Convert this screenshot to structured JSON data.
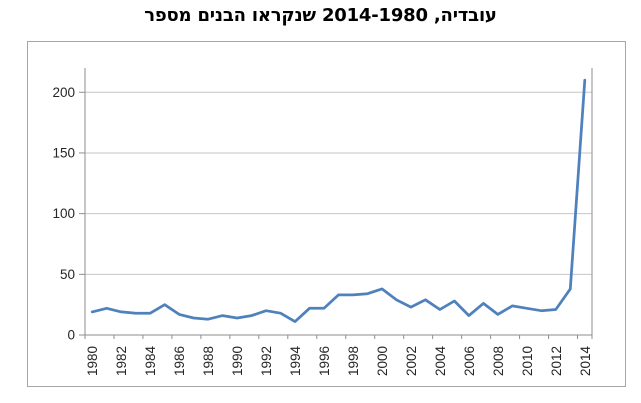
{
  "title": "מספר‎ הבנים‎ שנקראו‎ עובדיה, 2014-1980",
  "chart_data": {
    "type": "line",
    "title": "מספר הבנים שנקראו עובדיה, 2014-1980",
    "x": [
      1980,
      1981,
      1982,
      1983,
      1984,
      1985,
      1986,
      1987,
      1988,
      1989,
      1990,
      1991,
      1992,
      1993,
      1994,
      1995,
      1996,
      1997,
      1998,
      1999,
      2000,
      2001,
      2002,
      2003,
      2004,
      2005,
      2006,
      2007,
      2008,
      2009,
      2010,
      2011,
      2012,
      2013,
      2014
    ],
    "values": [
      19,
      22,
      19,
      18,
      18,
      25,
      17,
      14,
      13,
      16,
      14,
      16,
      20,
      18,
      11,
      22,
      22,
      33,
      33,
      34,
      38,
      29,
      23,
      29,
      21,
      28,
      16,
      26,
      17,
      24,
      22,
      20,
      21,
      38,
      210
    ],
    "x_tick_labels": [
      "1980",
      "1982",
      "1984",
      "1986",
      "1988",
      "1990",
      "1992",
      "1994",
      "1996",
      "1998",
      "2000",
      "2002",
      "2004",
      "2006",
      "2008",
      "2010",
      "2012",
      "2014"
    ],
    "y_ticks": [
      0,
      50,
      100,
      150,
      200
    ],
    "ylim": [
      0,
      220
    ],
    "xlabel": "",
    "ylabel": "",
    "grid": true,
    "legend": false,
    "line_color": "#4F81BD"
  },
  "colors": {
    "line": "#4F81BD",
    "gridline": "#C6C6C6",
    "axis": "#8E8E8E",
    "chart_border": "#A6A6A6",
    "tick_label": "#262626",
    "title": "#000000",
    "background": "#FFFFFF"
  }
}
